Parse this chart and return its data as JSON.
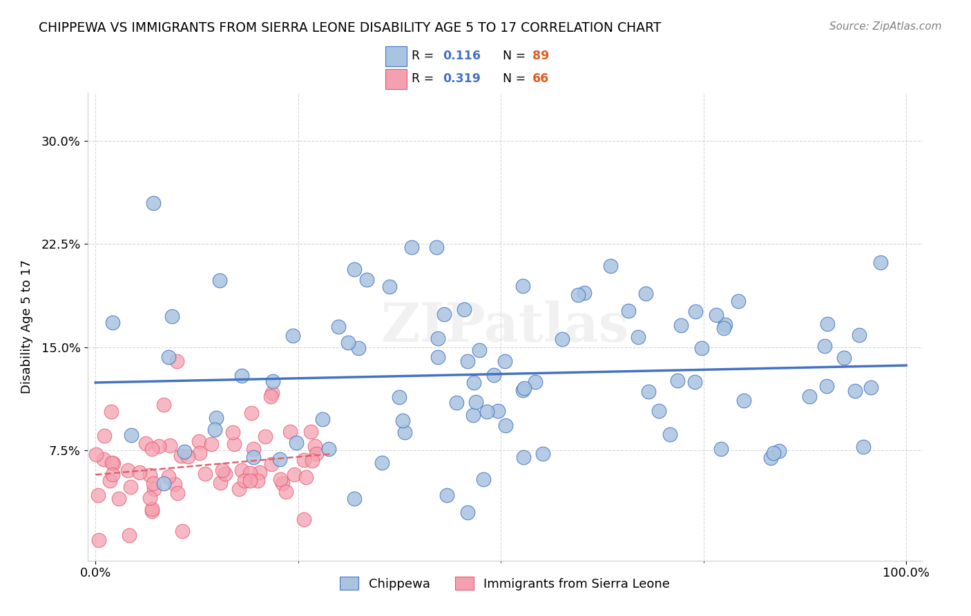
{
  "title": "CHIPPEWA VS IMMIGRANTS FROM SIERRA LEONE DISABILITY AGE 5 TO 17 CORRELATION CHART",
  "source": "Source: ZipAtlas.com",
  "ylabel": "Disability Age 5 to 17",
  "xlim": [
    -0.01,
    1.02
  ],
  "ylim": [
    -0.005,
    0.335
  ],
  "xtick_major": [
    0.0,
    1.0
  ],
  "xtick_major_labels": [
    "0.0%",
    "100.0%"
  ],
  "xtick_minor": [
    0.25,
    0.5,
    0.75
  ],
  "ytick_major": [
    0.075,
    0.15,
    0.225,
    0.3
  ],
  "ytick_major_labels": [
    "7.5%",
    "15.0%",
    "22.5%",
    "30.0%"
  ],
  "blue_face": "#a8c4e0",
  "blue_edge": "#4472c4",
  "pink_face": "#f4a0b0",
  "pink_edge": "#e8546a",
  "blue_line": "#4472c4",
  "pink_line": "#e06070",
  "R_chip": 0.116,
  "N_chip": 89,
  "R_sl": 0.319,
  "N_sl": 66,
  "label_chip": "Chippewa",
  "label_sl": "Immigrants from Sierra Leone",
  "watermark": "ZIPatlas",
  "legend_r_color": "#4472c4",
  "legend_n_color": "#e05c20"
}
